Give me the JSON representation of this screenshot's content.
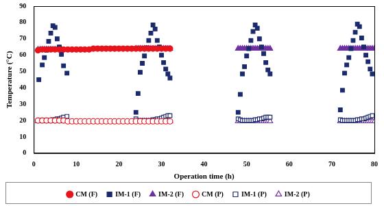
{
  "chart_data": {
    "type": "scatter",
    "x_label": "Operation time (h)",
    "y_label": "Temperature (°C)",
    "xlim": [
      0,
      80
    ],
    "xticks": [
      0,
      10,
      20,
      30,
      40,
      50,
      60,
      70,
      80
    ],
    "ylim": [
      0,
      90
    ],
    "yticks": [
      0,
      10,
      20,
      30,
      40,
      50,
      60,
      70,
      80,
      90
    ],
    "grid": false,
    "legend": "bottom",
    "series": [
      {
        "name": "CM (F)",
        "color": "#e8141c",
        "marker": "circle",
        "fill": true,
        "x": [
          1,
          2,
          3,
          4,
          5,
          6,
          7,
          8,
          9,
          10,
          11,
          12,
          13,
          14,
          15,
          16,
          17,
          18,
          19,
          20,
          21,
          22,
          23,
          24,
          25,
          26,
          27,
          28,
          29,
          30,
          31,
          32
        ],
        "values": [
          63,
          63.5,
          63.5,
          63.5,
          63.5,
          63.5,
          63.5,
          63.5,
          63.5,
          63.5,
          63.5,
          63.5,
          63.5,
          64,
          64,
          64,
          64,
          64,
          64,
          64,
          64,
          64,
          64,
          64,
          64,
          64,
          64,
          64,
          64,
          64,
          64,
          64
        ]
      },
      {
        "name": "IM-1 (F)",
        "color": "#1a2a6c",
        "marker": "square",
        "fill": true,
        "x": [
          1.2,
          2,
          2.5,
          3,
          3.5,
          4,
          4.5,
          5,
          5.5,
          6,
          6.5,
          7,
          7.8,
          24,
          24.5,
          25,
          25.5,
          26,
          26.5,
          27,
          27.5,
          28,
          28.5,
          29,
          29.5,
          30,
          30.5,
          31,
          31.5,
          32,
          48,
          48.5,
          49,
          49.5,
          50,
          50.5,
          51,
          51.5,
          52,
          52.5,
          53,
          53.5,
          54,
          54.5,
          55,
          55.5,
          72,
          72.5,
          73,
          73.5,
          74,
          74.5,
          75,
          75.5,
          76,
          76.5,
          77,
          77.5,
          78,
          78.5,
          79,
          79.5
        ],
        "values": [
          45,
          54,
          58.5,
          63,
          68.5,
          73.5,
          78,
          77,
          70,
          65,
          60.5,
          53.5,
          49,
          25,
          36.5,
          49.5,
          55,
          59.5,
          64.5,
          69,
          73.5,
          78.5,
          76,
          69,
          65,
          60,
          55.5,
          51.5,
          48.5,
          46,
          25,
          36,
          48.5,
          53,
          59.5,
          64,
          69,
          74.5,
          78.5,
          76.5,
          70,
          65,
          61,
          55.5,
          51,
          48.5,
          26.5,
          38.5,
          49,
          54,
          58.5,
          64,
          69,
          74,
          79,
          77.5,
          70.5,
          65,
          60,
          56,
          51.5,
          48.5
        ]
      },
      {
        "name": "IM-2 (F)",
        "color": "#7030a0",
        "marker": "triangle",
        "fill": true,
        "x": [
          1,
          1.5,
          2,
          2.5,
          3,
          3.5,
          4,
          4.5,
          5,
          5.5,
          6,
          6.5,
          24,
          24.5,
          25,
          25.5,
          26,
          26.5,
          27,
          27.5,
          28,
          28.5,
          29,
          29.5,
          30,
          30.5,
          31,
          31.5,
          32,
          48,
          48.5,
          49,
          49.5,
          50,
          50.5,
          51,
          51.5,
          52,
          52.5,
          53,
          53.5,
          54,
          54.5,
          55,
          55.5,
          72,
          72.5,
          73,
          73.5,
          74,
          74.5,
          75,
          75.5,
          76,
          76.5,
          77,
          77.5,
          78,
          78.5,
          79,
          79.5,
          80
        ],
        "values": [
          63.5,
          63.5,
          63.5,
          63.5,
          63.5,
          63.5,
          63.5,
          63.5,
          63.5,
          63.5,
          63.5,
          63.5,
          64,
          64,
          64,
          64,
          64,
          64,
          64,
          64,
          64,
          64,
          64,
          64,
          64,
          64,
          64,
          64,
          64,
          64,
          64,
          64,
          64,
          64,
          64,
          64,
          64,
          64,
          64,
          64,
          64,
          64,
          64,
          64,
          64,
          64,
          64,
          64,
          64,
          64,
          64,
          64,
          64,
          64,
          64,
          64,
          64,
          64,
          64,
          64,
          64,
          64
        ]
      },
      {
        "name": "CM (P)",
        "color": "#e8141c",
        "marker": "circle",
        "fill": false,
        "x": [
          1,
          2,
          3,
          4,
          5,
          6,
          7,
          8,
          9,
          10,
          11,
          12,
          13,
          14,
          15,
          16,
          17,
          18,
          19,
          20,
          21,
          22,
          23,
          24,
          25,
          26,
          27,
          28,
          29,
          30,
          31,
          32
        ],
        "values": [
          20,
          20,
          20,
          20,
          20,
          20,
          20,
          19.5,
          19.5,
          19.5,
          19.5,
          19.5,
          19.5,
          19.5,
          19.5,
          19.5,
          19.5,
          19.5,
          19.5,
          19.5,
          19.5,
          19.5,
          19.5,
          19.5,
          19.5,
          19.5,
          19.5,
          19.5,
          19.5,
          19.5,
          19.5,
          19.5
        ]
      },
      {
        "name": "IM-1 (P)",
        "color": "#1a2a6c",
        "marker": "square",
        "fill": false,
        "x": [
          1.2,
          2,
          2.5,
          3,
          3.5,
          4,
          4.5,
          5,
          5.5,
          6,
          6.5,
          7,
          7.8,
          24,
          24.5,
          25,
          25.5,
          26,
          26.5,
          27,
          27.5,
          28,
          28.5,
          29,
          29.5,
          30,
          30.5,
          31,
          31.5,
          32,
          48,
          48.5,
          49,
          49.5,
          50,
          50.5,
          51,
          51.5,
          52,
          52.5,
          53,
          53.5,
          54,
          54.5,
          55,
          55.5,
          72,
          72.5,
          73,
          73.5,
          74,
          74.5,
          75,
          75.5,
          76,
          76.5,
          77,
          77.5,
          78,
          78.5,
          79,
          79.5
        ],
        "values": [
          20,
          20,
          20,
          20,
          20,
          20,
          20.5,
          20.5,
          21,
          21,
          21.5,
          22,
          22.5,
          21,
          20,
          20,
          20,
          20,
          20,
          20,
          20,
          20.5,
          20.5,
          21,
          21,
          21.5,
          22,
          22.5,
          23,
          23,
          21,
          20.5,
          20,
          20,
          20,
          20,
          20,
          20,
          20.5,
          20.5,
          21,
          21,
          21.5,
          22,
          22,
          22,
          20.5,
          20,
          20,
          20,
          20,
          20,
          20,
          20,
          20.5,
          20.5,
          21,
          21,
          21.5,
          22,
          22.5,
          23
        ]
      },
      {
        "name": "IM-2 (P)",
        "color": "#7030a0",
        "marker": "triangle",
        "fill": false,
        "x": [
          1,
          1.5,
          2,
          2.5,
          3,
          3.5,
          4,
          4.5,
          5,
          5.5,
          6,
          6.5,
          24,
          24.5,
          25,
          25.5,
          26,
          26.5,
          27,
          27.5,
          28,
          28.5,
          29,
          29.5,
          30,
          30.5,
          31,
          31.5,
          32,
          48,
          48.5,
          49,
          49.5,
          50,
          50.5,
          51,
          51.5,
          52,
          52.5,
          53,
          53.5,
          54,
          54.5,
          55,
          55.5,
          72,
          72.5,
          73,
          73.5,
          74,
          74.5,
          75,
          75.5,
          76,
          76.5,
          77,
          77.5,
          78,
          78.5,
          79,
          79.5,
          80
        ],
        "values": [
          19.5,
          19.5,
          19.5,
          19.5,
          19.5,
          19.5,
          19.5,
          19.5,
          19.5,
          19.5,
          19.5,
          19.5,
          19.5,
          19.5,
          19.5,
          19.5,
          19.5,
          19.5,
          19.5,
          19.5,
          19.5,
          19.5,
          19.5,
          19.5,
          19.5,
          19.5,
          19.5,
          19.5,
          19.5,
          19.5,
          19.5,
          19.5,
          19.5,
          19.5,
          19.5,
          19.5,
          19.5,
          19.5,
          19.5,
          19.5,
          19.5,
          19.5,
          19.5,
          19.5,
          19.5,
          19.5,
          19.5,
          19.5,
          19.5,
          19.5,
          19.5,
          19.5,
          19.5,
          19.5,
          19.5,
          19.5,
          19.5,
          19.5,
          19.5,
          19.5,
          19.5,
          19.5
        ]
      }
    ]
  }
}
